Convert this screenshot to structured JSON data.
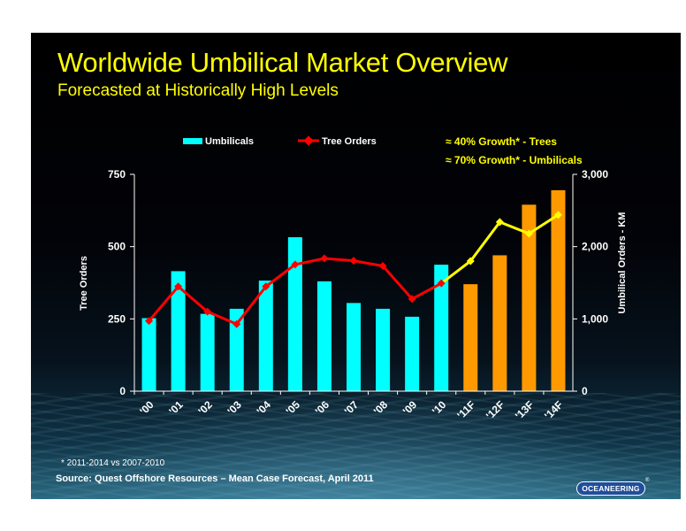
{
  "slide": {
    "title": "Worldwide Umbilical Market Overview",
    "subtitle": "Forecasted at Historically High Levels",
    "footnote": "* 2011-2014 vs 2007-2010",
    "source": "Source:  Quest Offshore Resources – Mean Case Forecast, April 2011",
    "logo_text": "OCEANEERING",
    "logo_mark": "®"
  },
  "chart_data": {
    "type": "bar",
    "categories": [
      "'00",
      "'01",
      "'02",
      "'03",
      "'04",
      "'05",
      "'06",
      "'07",
      "'08",
      "'09",
      "'10",
      "'11F",
      "'12F",
      "'13F",
      "'14F"
    ],
    "series": [
      {
        "name": "Umbilicals",
        "kind": "bar",
        "axis": "right",
        "values": [
          1010,
          1660,
          1070,
          1140,
          1530,
          2130,
          1520,
          1220,
          1140,
          1030,
          1750,
          1480,
          1880,
          2580,
          2780
        ]
      },
      {
        "name": "Tree Orders",
        "kind": "line",
        "axis": "left",
        "values": [
          243,
          362,
          275,
          232,
          362,
          438,
          459,
          451,
          433,
          319,
          373,
          450,
          585,
          545,
          610
        ]
      }
    ],
    "bar_colors": {
      "actual": "#00ffff",
      "forecast": "#ff9900"
    },
    "line_colors": {
      "actual": "#ff0000",
      "forecast": "#ffff00"
    },
    "forecast_start_index": 11,
    "ylabel": "Tree Orders",
    "y2label": "Umbilical Orders - KM",
    "ylim": [
      0,
      750
    ],
    "yticks": [
      "750",
      "500",
      "250",
      "0"
    ],
    "ytick_values": [
      750,
      500,
      250,
      0
    ],
    "y2lim": [
      0,
      3000
    ],
    "y2ticks": [
      "3,000",
      "2,000",
      "1,000",
      "0"
    ],
    "y2tick_values": [
      3000,
      2000,
      1000,
      0
    ],
    "legend": {
      "placement": "top",
      "umbilicals": "Umbilicals",
      "tree_orders": "Tree Orders"
    },
    "annotations": [
      "≈ 40% Growth* - Trees",
      "≈ 70% Growth* - Umbilicals"
    ],
    "annotation_color": "#ffff00",
    "grid": false
  }
}
